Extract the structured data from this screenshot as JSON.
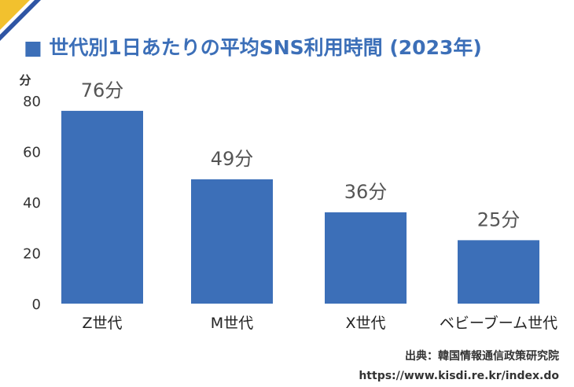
{
  "colors": {
    "accent": "#3c6fb8",
    "corner_yellow": "#f2c12e",
    "corner_blue": "#2f55a4",
    "text_dark": "#333333",
    "label_gray": "#555555"
  },
  "chart_data": {
    "type": "bar",
    "title": "■ 世代別1日あたりの平均SNS利用時間 (2023年)",
    "y_unit_label": "分",
    "categories": [
      "Z世代",
      "M世代",
      "X世代",
      "ベビーブーム世代"
    ],
    "values": [
      76,
      49,
      36,
      25
    ],
    "data_labels": [
      "76分",
      "49分",
      "36分",
      "25分"
    ],
    "ylim": [
      0,
      80
    ],
    "yticks": [
      0,
      20,
      40,
      60,
      80
    ],
    "grid": false,
    "legend": "none"
  },
  "footer": {
    "source": "出典：韓国情報通信政策研究院",
    "url": "https://www.kisdi.re.kr/index.do"
  }
}
